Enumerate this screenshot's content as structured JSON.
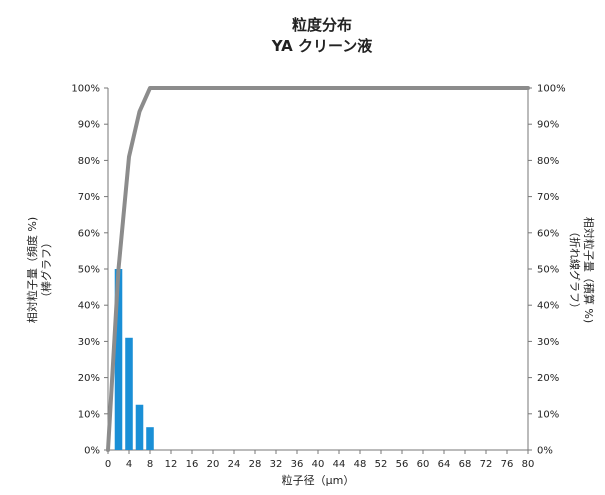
{
  "chart_data": {
    "type": "bar+line",
    "title": "粒度分布",
    "subtitle": "YA クリーン液",
    "xlabel": "粒子径（μm）",
    "ylabel_left": [
      "相対粒子量（頻度 %)",
      "（棒グラフ）"
    ],
    "ylabel_right": [
      "相対粒子量（積算 %)",
      "（折れ線グラフ）"
    ],
    "xlim": [
      0,
      80
    ],
    "x_ticks": [
      0,
      4,
      8,
      12,
      16,
      20,
      24,
      28,
      32,
      36,
      40,
      44,
      48,
      52,
      56,
      60,
      64,
      68,
      72,
      76,
      80
    ],
    "ylim": [
      0,
      100
    ],
    "y_ticks": [
      "0%",
      "10%",
      "20%",
      "30%",
      "40%",
      "50%",
      "60%",
      "70%",
      "80%",
      "90%",
      "100%"
    ],
    "grid": false,
    "bars": {
      "name": "頻度",
      "x": [
        2,
        4,
        6,
        8
      ],
      "values": [
        50,
        31,
        12.5,
        6.3
      ],
      "color": "#1a8fd6"
    },
    "line": {
      "name": "積算",
      "x": [
        0,
        2,
        4,
        6,
        8,
        80
      ],
      "values": [
        0,
        50,
        81,
        93.5,
        100,
        100
      ],
      "color": "#8c8c8c"
    }
  }
}
